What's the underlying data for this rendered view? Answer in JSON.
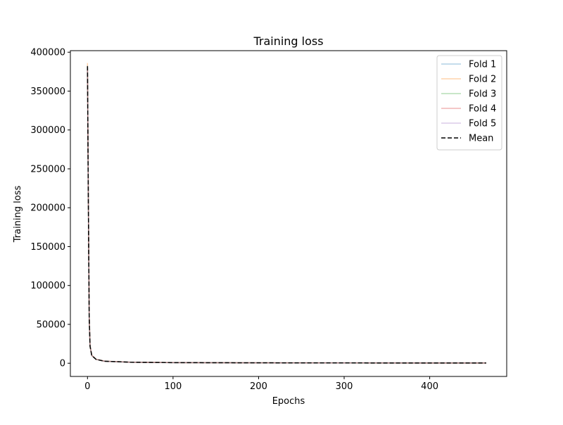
{
  "chart_data": {
    "type": "line",
    "title": "Training loss",
    "xlabel": "Epochs",
    "ylabel": "Training loss",
    "xlim": [
      -20,
      490
    ],
    "ylim": [
      -17000,
      402000
    ],
    "xticks": [
      0,
      100,
      200,
      300,
      400
    ],
    "yticks": [
      0,
      50000,
      100000,
      150000,
      200000,
      250000,
      300000,
      350000,
      400000
    ],
    "grid": false,
    "legend_position": "top-right",
    "x_end": 466,
    "series": [
      {
        "name": "Fold 1",
        "color": "#1f77b4",
        "alpha": 0.35,
        "style": "solid",
        "points": [
          [
            0,
            383000
          ],
          [
            1,
            210000
          ],
          [
            2,
            60000
          ],
          [
            3,
            22000
          ],
          [
            5,
            10000
          ],
          [
            10,
            5000
          ],
          [
            20,
            2600
          ],
          [
            50,
            1300
          ],
          [
            100,
            800
          ],
          [
            200,
            500
          ],
          [
            300,
            380
          ],
          [
            400,
            330
          ],
          [
            466,
            300
          ]
        ]
      },
      {
        "name": "Fold 2",
        "color": "#ff7f0e",
        "alpha": 0.35,
        "style": "solid",
        "points": [
          [
            0,
            386000
          ],
          [
            1,
            215000
          ],
          [
            2,
            62000
          ],
          [
            3,
            23000
          ],
          [
            5,
            10500
          ],
          [
            10,
            5200
          ],
          [
            20,
            2700
          ],
          [
            50,
            1350
          ],
          [
            100,
            820
          ],
          [
            200,
            520
          ],
          [
            300,
            390
          ],
          [
            400,
            340
          ],
          [
            466,
            310
          ]
        ]
      },
      {
        "name": "Fold 3",
        "color": "#2ca02c",
        "alpha": 0.35,
        "style": "solid",
        "points": [
          [
            0,
            381000
          ],
          [
            1,
            205000
          ],
          [
            2,
            58000
          ],
          [
            3,
            21000
          ],
          [
            5,
            9800
          ],
          [
            10,
            4900
          ],
          [
            20,
            2550
          ],
          [
            50,
            1280
          ],
          [
            100,
            790
          ],
          [
            200,
            490
          ],
          [
            300,
            370
          ],
          [
            400,
            320
          ],
          [
            466,
            295
          ]
        ]
      },
      {
        "name": "Fold 4",
        "color": "#d62728",
        "alpha": 0.35,
        "style": "solid",
        "points": [
          [
            0,
            379000
          ],
          [
            1,
            208000
          ],
          [
            2,
            59000
          ],
          [
            3,
            21500
          ],
          [
            5,
            9900
          ],
          [
            10,
            5000
          ],
          [
            20,
            2580
          ],
          [
            50,
            1290
          ],
          [
            100,
            800
          ],
          [
            200,
            500
          ],
          [
            300,
            375
          ],
          [
            400,
            325
          ],
          [
            466,
            298
          ]
        ]
      },
      {
        "name": "Fold 5",
        "color": "#9467bd",
        "alpha": 0.35,
        "style": "solid",
        "points": [
          [
            0,
            380000
          ],
          [
            1,
            209000
          ],
          [
            2,
            60000
          ],
          [
            3,
            22000
          ],
          [
            5,
            10000
          ],
          [
            10,
            5000
          ],
          [
            20,
            2600
          ],
          [
            50,
            1300
          ],
          [
            100,
            805
          ],
          [
            200,
            505
          ],
          [
            300,
            380
          ],
          [
            400,
            330
          ],
          [
            466,
            300
          ]
        ]
      },
      {
        "name": "Mean",
        "color": "#000000",
        "alpha": 1,
        "style": "dashed",
        "points": [
          [
            0,
            382000
          ],
          [
            1,
            209000
          ],
          [
            2,
            60000
          ],
          [
            3,
            22000
          ],
          [
            5,
            10000
          ],
          [
            10,
            5000
          ],
          [
            20,
            2600
          ],
          [
            50,
            1300
          ],
          [
            100,
            803
          ],
          [
            200,
            503
          ],
          [
            300,
            379
          ],
          [
            400,
            329
          ],
          [
            466,
            301
          ]
        ]
      }
    ]
  }
}
